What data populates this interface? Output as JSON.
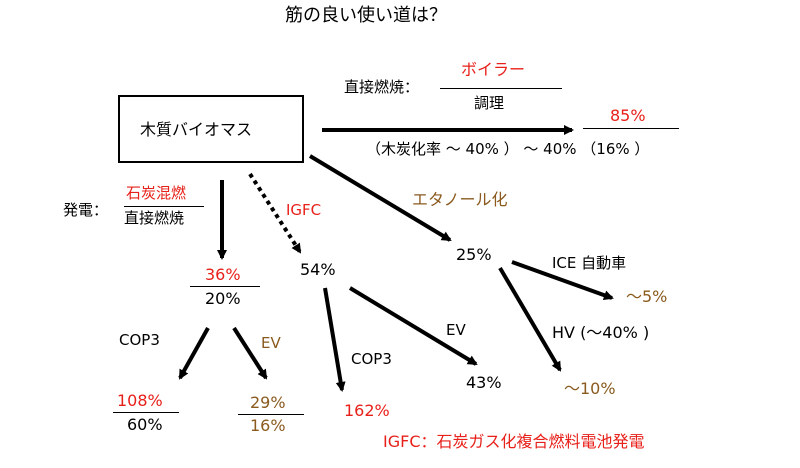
{
  "colors": {
    "red": "#e8201a",
    "brown": "#8a5a1e",
    "black": "#000000"
  },
  "title": "筋の良い使い道は？",
  "source_box": "木質バイオマス",
  "direct": {
    "label": "直接燃焼：",
    "numer": "ボイラー",
    "denom": "調理",
    "efficiency": "85%",
    "note": "（木炭化率 ～ 40% ） ～ 40% （16% ）"
  },
  "power": {
    "label": "発電：",
    "numer": "石炭混燃",
    "denom": "直接燃焼",
    "eff_top": "36%",
    "eff_bottom": "20%",
    "cop3_label": "COP3",
    "ev_label": "EV",
    "cop3_top": "108%",
    "cop3_bottom": "60%",
    "ev_top": "29%",
    "ev_bottom": "16%"
  },
  "igfc": {
    "label": "IGFC",
    "efficiency": "54%",
    "cop3_label": "COP3",
    "cop3_value": "162%",
    "ev_label": "EV",
    "ev_value": "43%",
    "footnote": "IGFC：石炭ガス化複合燃料電池発電"
  },
  "ethanol": {
    "label": "エタノール化",
    "efficiency": "25%",
    "ice_label": "ICE 自動車",
    "ice_value": "～5%",
    "hv_label": "HV (～40% )",
    "hv_value": "～10%"
  }
}
